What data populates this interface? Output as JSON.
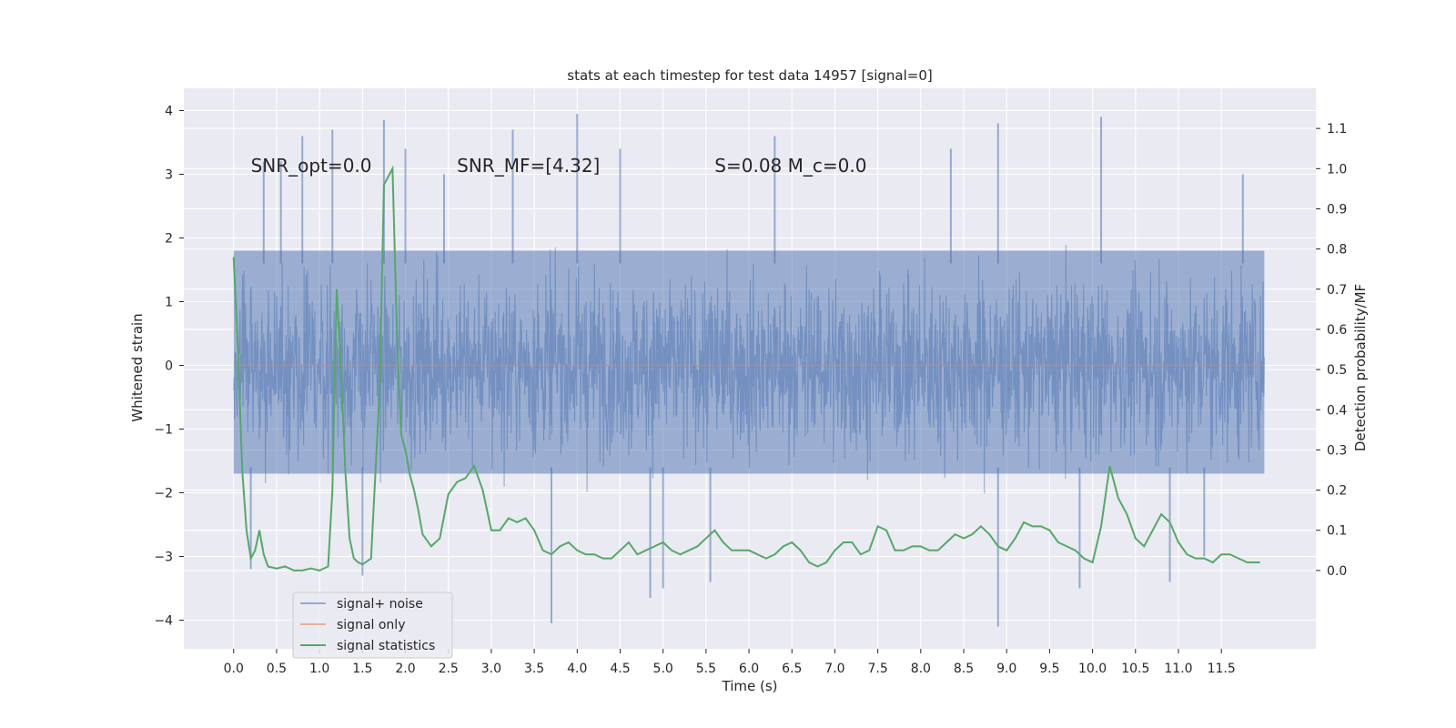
{
  "chart_data": {
    "type": "line",
    "title": "stats at each timestep for test data 14957 [signal=0]",
    "xlabel": "Time (s)",
    "ylabel": "Whitened strain",
    "y2label": "Detection probability/MF",
    "xlim": [
      -0.58,
      12.6
    ],
    "ylim": [
      -4.45,
      4.35
    ],
    "y2lim": [
      -0.195,
      1.2
    ],
    "xticks": [
      0.0,
      0.5,
      1.0,
      1.5,
      2.0,
      2.5,
      3.0,
      3.5,
      4.0,
      4.5,
      5.0,
      5.5,
      6.0,
      6.5,
      7.0,
      7.5,
      8.0,
      8.5,
      9.0,
      9.5,
      10.0,
      10.5,
      11.0,
      11.5
    ],
    "xtick_labels": [
      "0.0",
      "0.5",
      "1.0",
      "1.5",
      "2.0",
      "2.5",
      "3.0",
      "3.5",
      "4.0",
      "4.5",
      "5.0",
      "5.5",
      "6.0",
      "6.5",
      "7.0",
      "7.5",
      "8.0",
      "8.5",
      "9.0",
      "9.5",
      "10.0",
      "10.5",
      "11.0",
      "11.5"
    ],
    "yticks": [
      -4,
      -3,
      -2,
      -1,
      0,
      1,
      2,
      3,
      4
    ],
    "ytick_labels": [
      "−4",
      "−3",
      "−2",
      "−1",
      "0",
      "1",
      "2",
      "3",
      "4"
    ],
    "y2ticks": [
      0.0,
      0.1,
      0.2,
      0.3,
      0.4,
      0.5,
      0.6,
      0.7,
      0.8,
      0.9,
      1.0,
      1.1
    ],
    "y2tick_labels": [
      "0.0",
      "0.1",
      "0.2",
      "0.3",
      "0.4",
      "0.5",
      "0.6",
      "0.7",
      "0.8",
      "0.9",
      "1.0",
      "1.1"
    ],
    "annotations": [
      {
        "id": "snr-opt",
        "text": "SNR_opt=0.0",
        "x": 0.2,
        "y": 3.15
      },
      {
        "id": "snr-mf",
        "text": "SNR_MF=[4.32]",
        "x": 2.6,
        "y": 3.15
      },
      {
        "id": "s-mc",
        "text": "S=0.08   M_c=0.0",
        "x": 5.6,
        "y": 3.15
      }
    ],
    "series": [
      {
        "name": "signal+ noise",
        "axis": "left",
        "color": "#4c72b0",
        "opacity": 0.5,
        "description": "dense whitened strain noise, approx uniform amplitude ~1.8 sigma band",
        "envelope": {
          "x_start": 0.0,
          "x_end": 12.0,
          "core_low": -1.7,
          "core_high": 1.8
        },
        "spikes": [
          [
            0.35,
            3.2
          ],
          [
            0.55,
            3.2
          ],
          [
            0.8,
            3.6
          ],
          [
            1.15,
            3.7
          ],
          [
            1.75,
            3.85
          ],
          [
            2.0,
            3.4
          ],
          [
            2.45,
            3.0
          ],
          [
            3.25,
            3.7
          ],
          [
            4.0,
            3.95
          ],
          [
            4.5,
            3.4
          ],
          [
            6.3,
            3.6
          ],
          [
            8.35,
            3.4
          ],
          [
            8.9,
            3.8
          ],
          [
            10.1,
            3.9
          ],
          [
            11.75,
            3.0
          ],
          [
            0.2,
            -3.2
          ],
          [
            1.5,
            -3.3
          ],
          [
            3.7,
            -4.05
          ],
          [
            4.85,
            -3.65
          ],
          [
            5.0,
            -3.5
          ],
          [
            5.55,
            -3.4
          ],
          [
            8.9,
            -4.1
          ],
          [
            9.85,
            -3.5
          ],
          [
            10.9,
            -3.4
          ],
          [
            11.3,
            -3.0
          ]
        ]
      },
      {
        "name": "signal only",
        "axis": "left",
        "color": "#dd8452",
        "x": [
          0.0,
          12.0
        ],
        "y": [
          0.0,
          0.0
        ]
      },
      {
        "name": "signal statistics",
        "axis": "right",
        "color": "#55a868",
        "x": [
          0.0,
          0.05,
          0.1,
          0.15,
          0.2,
          0.25,
          0.3,
          0.35,
          0.4,
          0.5,
          0.6,
          0.7,
          0.8,
          0.9,
          1.0,
          1.1,
          1.15,
          1.2,
          1.25,
          1.3,
          1.35,
          1.4,
          1.45,
          1.5,
          1.6,
          1.7,
          1.75,
          1.8,
          1.85,
          1.9,
          1.95,
          2.0,
          2.05,
          2.1,
          2.15,
          2.2,
          2.3,
          2.4,
          2.5,
          2.6,
          2.7,
          2.8,
          2.9,
          3.0,
          3.1,
          3.2,
          3.3,
          3.4,
          3.5,
          3.6,
          3.7,
          3.8,
          3.9,
          4.0,
          4.1,
          4.2,
          4.3,
          4.4,
          4.5,
          4.6,
          4.7,
          4.8,
          4.9,
          5.0,
          5.1,
          5.2,
          5.3,
          5.4,
          5.5,
          5.6,
          5.7,
          5.8,
          5.9,
          6.0,
          6.1,
          6.2,
          6.3,
          6.4,
          6.5,
          6.6,
          6.7,
          6.8,
          6.9,
          7.0,
          7.1,
          7.2,
          7.3,
          7.4,
          7.5,
          7.6,
          7.7,
          7.8,
          7.9,
          8.0,
          8.1,
          8.2,
          8.3,
          8.4,
          8.5,
          8.6,
          8.7,
          8.8,
          8.9,
          9.0,
          9.1,
          9.2,
          9.3,
          9.4,
          9.5,
          9.6,
          9.7,
          9.8,
          9.9,
          10.0,
          10.1,
          10.2,
          10.3,
          10.4,
          10.5,
          10.6,
          10.7,
          10.8,
          10.9,
          11.0,
          11.1,
          11.2,
          11.3,
          11.4,
          11.5,
          11.6,
          11.7,
          11.8,
          11.9,
          11.95
        ],
        "y": [
          0.78,
          0.55,
          0.25,
          0.1,
          0.03,
          0.05,
          0.1,
          0.04,
          0.01,
          0.005,
          0.01,
          0.0,
          0.0,
          0.005,
          0.0,
          0.01,
          0.2,
          0.7,
          0.5,
          0.25,
          0.08,
          0.03,
          0.02,
          0.015,
          0.03,
          0.45,
          0.96,
          0.98,
          1.0,
          0.6,
          0.34,
          0.3,
          0.24,
          0.2,
          0.15,
          0.09,
          0.06,
          0.08,
          0.19,
          0.22,
          0.23,
          0.26,
          0.2,
          0.1,
          0.1,
          0.13,
          0.12,
          0.13,
          0.1,
          0.05,
          0.04,
          0.06,
          0.07,
          0.05,
          0.04,
          0.04,
          0.03,
          0.03,
          0.05,
          0.07,
          0.04,
          0.05,
          0.06,
          0.07,
          0.05,
          0.04,
          0.05,
          0.06,
          0.08,
          0.1,
          0.07,
          0.05,
          0.05,
          0.05,
          0.04,
          0.03,
          0.04,
          0.06,
          0.07,
          0.05,
          0.02,
          0.01,
          0.02,
          0.05,
          0.07,
          0.07,
          0.04,
          0.05,
          0.11,
          0.1,
          0.05,
          0.05,
          0.06,
          0.06,
          0.05,
          0.05,
          0.07,
          0.09,
          0.08,
          0.09,
          0.11,
          0.09,
          0.06,
          0.05,
          0.08,
          0.12,
          0.11,
          0.11,
          0.1,
          0.07,
          0.06,
          0.05,
          0.03,
          0.02,
          0.11,
          0.26,
          0.18,
          0.14,
          0.08,
          0.06,
          0.1,
          0.14,
          0.12,
          0.07,
          0.04,
          0.03,
          0.03,
          0.02,
          0.04,
          0.04,
          0.03,
          0.02,
          0.02,
          0.02
        ]
      }
    ],
    "legend": {
      "placement": "lower-left",
      "entries": [
        {
          "label": "signal+ noise",
          "color": "#4c72b0"
        },
        {
          "label": "signal only",
          "color": "#dd8452"
        },
        {
          "label": "signal statistics",
          "color": "#55a868"
        }
      ]
    },
    "style": {
      "plot_bg": "#eaeaf2",
      "grid_color": "#ffffff",
      "text_color": "#262626"
    }
  }
}
